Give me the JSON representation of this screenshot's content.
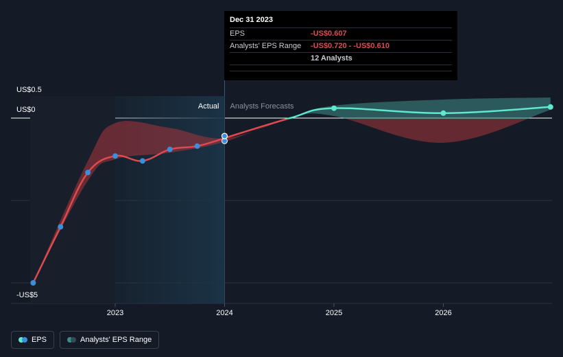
{
  "chart_data": {
    "type": "line",
    "y_ticks": [
      {
        "value": 0.5,
        "label": "US$0.5"
      },
      {
        "value": 0,
        "label": "US$0"
      },
      {
        "value": -5,
        "label": "-US$5"
      }
    ],
    "x_ticks": [
      {
        "value": 2023,
        "label": "2023"
      },
      {
        "value": 2024,
        "label": "2024"
      },
      {
        "value": 2025,
        "label": "2025"
      },
      {
        "value": 2026,
        "label": "2026"
      }
    ],
    "region_labels": {
      "actual": "Actual",
      "forecast": "Analysts Forecasts"
    },
    "series": [
      {
        "name": "EPS",
        "kind": "actual",
        "color": "#e04a4f",
        "points": [
          {
            "x": 2022.25,
            "y": -5.0
          },
          {
            "x": 2022.5,
            "y": -3.3
          },
          {
            "x": 2022.75,
            "y": -1.65
          },
          {
            "x": 2023.0,
            "y": -1.15
          },
          {
            "x": 2023.25,
            "y": -1.3
          },
          {
            "x": 2023.5,
            "y": -0.95
          },
          {
            "x": 2023.75,
            "y": -0.85
          },
          {
            "x": 2024.0,
            "y": -0.61
          }
        ]
      },
      {
        "name": "EPS",
        "kind": "forecast",
        "color": "#5de8cf",
        "points": [
          {
            "x": 2024.0,
            "y": -0.607
          },
          {
            "x": 2024.6,
            "y": 0.0
          },
          {
            "x": 2025.0,
            "y": 0.24
          },
          {
            "x": 2026.0,
            "y": 0.12
          },
          {
            "x": 2026.98,
            "y": 0.27
          }
        ]
      }
    ],
    "eps_range_band": {
      "name": "Analysts' EPS Range",
      "upper": [
        {
          "x": 2022.25,
          "y": -5.0
        },
        {
          "x": 2022.75,
          "y": -1.3
        },
        {
          "x": 2023.0,
          "y": -0.15
        },
        {
          "x": 2023.5,
          "y": -0.3
        },
        {
          "x": 2024.0,
          "y": -0.61
        },
        {
          "x": 2024.6,
          "y": 0.0
        },
        {
          "x": 2025.0,
          "y": 0.3
        },
        {
          "x": 2026.0,
          "y": 0.45
        },
        {
          "x": 2026.98,
          "y": 0.5
        }
      ],
      "lower": [
        {
          "x": 2022.25,
          "y": -5.0
        },
        {
          "x": 2022.75,
          "y": -1.9
        },
        {
          "x": 2023.0,
          "y": -1.25
        },
        {
          "x": 2023.5,
          "y": -1.05
        },
        {
          "x": 2024.0,
          "y": -0.72
        },
        {
          "x": 2024.6,
          "y": 0.0
        },
        {
          "x": 2025.0,
          "y": 0.05
        },
        {
          "x": 2026.0,
          "y": -0.75
        },
        {
          "x": 2026.98,
          "y": 0.2
        }
      ]
    },
    "highlight_x": 2024.0,
    "legend": [
      "EPS",
      "Analysts' EPS Range"
    ],
    "colors": {
      "eps_actual": "#e04a4f",
      "eps_forecast": "#5de8cf",
      "band_negative": "#a8353d",
      "band_positive": "#3f8c86",
      "actual_region": "#1b3447"
    }
  },
  "tooltip": {
    "date": "Dec 31 2023",
    "rows": [
      {
        "key": "EPS",
        "value": "-US$0.607"
      },
      {
        "key": "Analysts' EPS Range",
        "value": "-US$0.720 - -US$0.610"
      },
      {
        "key": "",
        "value": "12 Analysts"
      }
    ]
  },
  "legend": {
    "eps_label": "EPS",
    "range_label": "Analysts' EPS Range"
  }
}
